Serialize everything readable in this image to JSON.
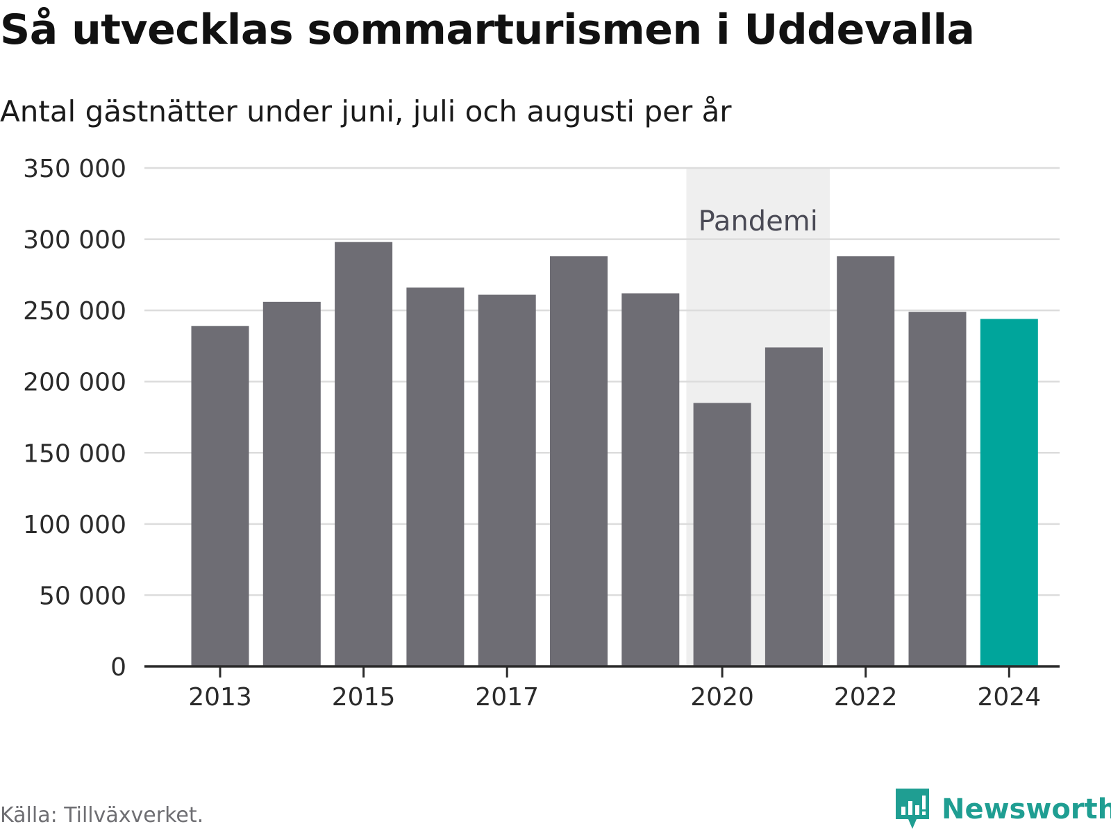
{
  "title": "Så utvecklas sommarturismen i Uddevalla",
  "subtitle": "Antal gästnätter under juni, juli och augusti per år",
  "source": "Källa: Tillväxverket.",
  "brand": {
    "name": "Newsworthy",
    "icon": "newsworthy-logo-icon",
    "color": "#1f9e92"
  },
  "chart_data": {
    "type": "bar",
    "title": "Så utvecklas sommarturismen i Uddevalla",
    "subtitle": "Antal gästnätter under juni, juli och augusti per år",
    "categories": [
      "2013",
      "2014",
      "2015",
      "2016",
      "2017",
      "2018",
      "2019",
      "2020",
      "2021",
      "2022",
      "2023",
      "2024"
    ],
    "values": [
      239000,
      256000,
      298000,
      266000,
      261000,
      288000,
      262000,
      185000,
      224000,
      288000,
      249000,
      244000
    ],
    "x_tick_labels": [
      "2013",
      "2015",
      "2017",
      "2020",
      "2022",
      "2024"
    ],
    "y_ticks": [
      0,
      50000,
      100000,
      150000,
      200000,
      250000,
      300000,
      350000
    ],
    "y_tick_labels": [
      "0",
      "50 000",
      "100 000",
      "150 000",
      "200 000",
      "250 000",
      "300 000",
      "350 000"
    ],
    "ylim": [
      0,
      350000
    ],
    "grid": true,
    "colors": {
      "default": "#6e6d74",
      "highlight": "#00a59b",
      "highlight_category": "2024"
    },
    "annotations": [
      {
        "type": "shaded-region",
        "label": "Pandemi",
        "from": "2020",
        "to": "2021",
        "color": "#efefef"
      }
    ]
  }
}
